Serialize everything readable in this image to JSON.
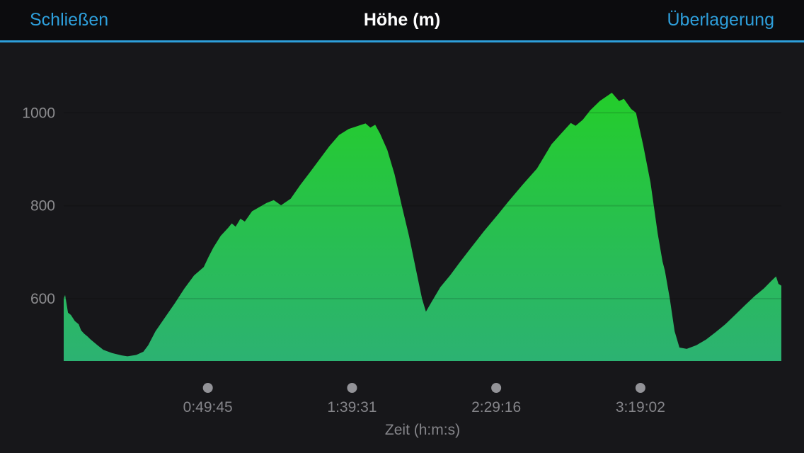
{
  "header": {
    "left_button": "Schließen",
    "title": "Höhe (m)",
    "right_button": "Überlagerung"
  },
  "colors": {
    "accent_blue": "#2e9fdb",
    "header_bg": "#0c0c0e",
    "page_bg": "#17171a",
    "area_gradient_top": "#24cd2b",
    "area_gradient_bottom": "#2cb272",
    "gridline": "rgba(0,0,0,0.12)",
    "y_tick_label": "#8b8b8e",
    "x_tick_label": "#85858a",
    "tick_dot": "#939398",
    "axis_title": "#85858a"
  },
  "chart_data": {
    "type": "area",
    "title": "Höhe (m)",
    "xlabel": "Zeit (h:m:s)",
    "ylabel": "",
    "x_unit": "seconds",
    "xlim": [
      0,
      14860
    ],
    "ylim": [
      466,
      1075
    ],
    "grid": "horizontal-faint",
    "legend": "none",
    "y_ticks": [
      {
        "value": 600,
        "label": "600"
      },
      {
        "value": 800,
        "label": "800"
      },
      {
        "value": 1000,
        "label": "1000"
      }
    ],
    "x_ticks": [
      {
        "value": 2985,
        "label": "0:49:45"
      },
      {
        "value": 5971,
        "label": "1:39:31"
      },
      {
        "value": 8956,
        "label": "2:29:16"
      },
      {
        "value": 11942,
        "label": "3:19:02"
      }
    ],
    "series": [
      {
        "name": "Höhe",
        "points": [
          [
            0,
            600
          ],
          [
            30,
            608
          ],
          [
            90,
            570
          ],
          [
            150,
            565
          ],
          [
            230,
            552
          ],
          [
            310,
            545
          ],
          [
            360,
            532
          ],
          [
            420,
            525
          ],
          [
            500,
            518
          ],
          [
            560,
            512
          ],
          [
            700,
            500
          ],
          [
            820,
            490
          ],
          [
            1000,
            483
          ],
          [
            1200,
            478
          ],
          [
            1320,
            476
          ],
          [
            1500,
            479
          ],
          [
            1650,
            486
          ],
          [
            1750,
            500
          ],
          [
            1900,
            530
          ],
          [
            2100,
            560
          ],
          [
            2300,
            590
          ],
          [
            2500,
            622
          ],
          [
            2700,
            650
          ],
          [
            2900,
            668
          ],
          [
            3000,
            690
          ],
          [
            3100,
            710
          ],
          [
            3250,
            735
          ],
          [
            3400,
            752
          ],
          [
            3480,
            762
          ],
          [
            3560,
            755
          ],
          [
            3660,
            772
          ],
          [
            3750,
            766
          ],
          [
            3900,
            788
          ],
          [
            4100,
            800
          ],
          [
            4200,
            806
          ],
          [
            4350,
            812
          ],
          [
            4500,
            801
          ],
          [
            4700,
            815
          ],
          [
            4900,
            845
          ],
          [
            5100,
            872
          ],
          [
            5300,
            900
          ],
          [
            5500,
            928
          ],
          [
            5700,
            952
          ],
          [
            5900,
            965
          ],
          [
            6100,
            972
          ],
          [
            6250,
            977
          ],
          [
            6350,
            968
          ],
          [
            6450,
            974
          ],
          [
            6550,
            955
          ],
          [
            6700,
            920
          ],
          [
            6850,
            868
          ],
          [
            7000,
            800
          ],
          [
            7150,
            735
          ],
          [
            7300,
            660
          ],
          [
            7420,
            600
          ],
          [
            7500,
            572
          ],
          [
            7600,
            590
          ],
          [
            7800,
            625
          ],
          [
            8000,
            650
          ],
          [
            8200,
            678
          ],
          [
            8400,
            705
          ],
          [
            8700,
            745
          ],
          [
            9000,
            782
          ],
          [
            9200,
            808
          ],
          [
            9500,
            845
          ],
          [
            9800,
            880
          ],
          [
            10100,
            932
          ],
          [
            10300,
            955
          ],
          [
            10500,
            978
          ],
          [
            10600,
            972
          ],
          [
            10750,
            985
          ],
          [
            10900,
            1005
          ],
          [
            11100,
            1025
          ],
          [
            11350,
            1043
          ],
          [
            11500,
            1025
          ],
          [
            11600,
            1030
          ],
          [
            11750,
            1008
          ],
          [
            11850,
            1000
          ],
          [
            12000,
            930
          ],
          [
            12150,
            850
          ],
          [
            12300,
            740
          ],
          [
            12400,
            680
          ],
          [
            12450,
            660
          ],
          [
            12550,
            600
          ],
          [
            12650,
            530
          ],
          [
            12750,
            495
          ],
          [
            12900,
            492
          ],
          [
            13100,
            500
          ],
          [
            13300,
            512
          ],
          [
            13500,
            528
          ],
          [
            13700,
            545
          ],
          [
            13900,
            565
          ],
          [
            14100,
            585
          ],
          [
            14300,
            605
          ],
          [
            14500,
            622
          ],
          [
            14650,
            638
          ],
          [
            14750,
            648
          ],
          [
            14800,
            632
          ],
          [
            14860,
            628
          ]
        ]
      }
    ]
  }
}
